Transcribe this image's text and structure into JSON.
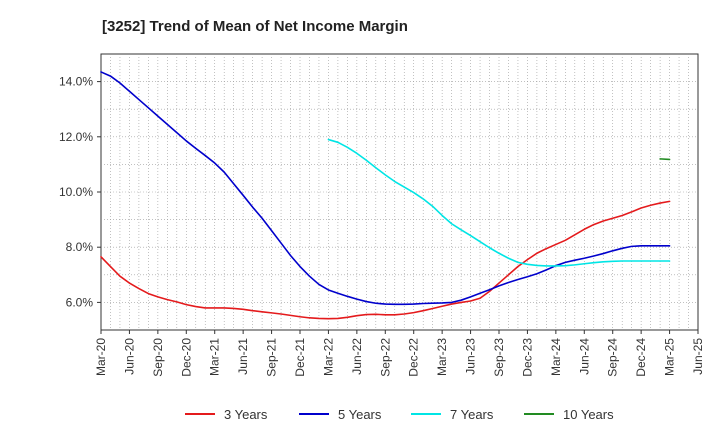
{
  "chart_data": {
    "type": "line",
    "title": "[3252]  Trend of Mean of Net Income Margin",
    "xlabel": "",
    "ylabel": "",
    "x_ticks": [
      "Mar-20",
      "Jun-20",
      "Sep-20",
      "Dec-20",
      "Mar-21",
      "Jun-21",
      "Sep-21",
      "Dec-21",
      "Mar-22",
      "Jun-22",
      "Sep-22",
      "Dec-22",
      "Mar-23",
      "Jun-23",
      "Sep-23",
      "Dec-23",
      "Mar-24",
      "Jun-24",
      "Sep-24",
      "Dec-24",
      "Mar-25",
      "Jun-25"
    ],
    "y_ticks": [
      6.0,
      8.0,
      10.0,
      12.0,
      14.0
    ],
    "y_tick_labels": [
      "6.0%",
      "8.0%",
      "10.0%",
      "12.0%",
      "14.0%"
    ],
    "ylim": [
      5.0,
      15.0
    ],
    "grid": true,
    "legend_position": "bottom",
    "series": [
      {
        "name": "3 Years",
        "color": "#e41a1c",
        "points": [
          [
            "Mar-20",
            7.65
          ],
          [
            "Apr-20",
            7.3
          ],
          [
            "May-20",
            6.95
          ],
          [
            "Jun-20",
            6.7
          ],
          [
            "Jul-20",
            6.5
          ],
          [
            "Aug-20",
            6.32
          ],
          [
            "Sep-20",
            6.2
          ],
          [
            "Oct-20",
            6.1
          ],
          [
            "Nov-20",
            6.02
          ],
          [
            "Dec-20",
            5.92
          ],
          [
            "Jan-21",
            5.85
          ],
          [
            "Feb-21",
            5.8
          ],
          [
            "Mar-21",
            5.8
          ],
          [
            "Apr-21",
            5.8
          ],
          [
            "May-21",
            5.78
          ],
          [
            "Jun-21",
            5.75
          ],
          [
            "Jul-21",
            5.7
          ],
          [
            "Aug-21",
            5.66
          ],
          [
            "Sep-21",
            5.62
          ],
          [
            "Oct-21",
            5.58
          ],
          [
            "Nov-21",
            5.53
          ],
          [
            "Dec-21",
            5.48
          ],
          [
            "Jan-22",
            5.44
          ],
          [
            "Feb-22",
            5.42
          ],
          [
            "Mar-22",
            5.41
          ],
          [
            "Apr-22",
            5.42
          ],
          [
            "May-22",
            5.46
          ],
          [
            "Jun-22",
            5.52
          ],
          [
            "Jul-22",
            5.56
          ],
          [
            "Aug-22",
            5.57
          ],
          [
            "Sep-22",
            5.55
          ],
          [
            "Oct-22",
            5.55
          ],
          [
            "Nov-22",
            5.58
          ],
          [
            "Dec-22",
            5.63
          ],
          [
            "Jan-23",
            5.7
          ],
          [
            "Feb-23",
            5.78
          ],
          [
            "Mar-23",
            5.86
          ],
          [
            "Apr-23",
            5.94
          ],
          [
            "May-23",
            6.0
          ],
          [
            "Jun-23",
            6.05
          ],
          [
            "Jul-23",
            6.15
          ],
          [
            "Aug-23",
            6.4
          ],
          [
            "Sep-23",
            6.7
          ],
          [
            "Oct-23",
            7.0
          ],
          [
            "Nov-23",
            7.3
          ],
          [
            "Dec-23",
            7.55
          ],
          [
            "Jan-24",
            7.78
          ],
          [
            "Feb-24",
            7.95
          ],
          [
            "Mar-24",
            8.1
          ],
          [
            "Apr-24",
            8.25
          ],
          [
            "May-24",
            8.45
          ],
          [
            "Jun-24",
            8.65
          ],
          [
            "Jul-24",
            8.82
          ],
          [
            "Aug-24",
            8.95
          ],
          [
            "Sep-24",
            9.05
          ],
          [
            "Oct-24",
            9.15
          ],
          [
            "Nov-24",
            9.28
          ],
          [
            "Dec-24",
            9.42
          ],
          [
            "Jan-25",
            9.52
          ],
          [
            "Feb-25",
            9.6
          ],
          [
            "Mar-25",
            9.66
          ]
        ]
      },
      {
        "name": "5 Years",
        "color": "#0000cc",
        "points": [
          [
            "Mar-20",
            14.35
          ],
          [
            "Apr-20",
            14.2
          ],
          [
            "May-20",
            13.95
          ],
          [
            "Jun-20",
            13.65
          ],
          [
            "Jul-20",
            13.35
          ],
          [
            "Aug-20",
            13.05
          ],
          [
            "Sep-20",
            12.75
          ],
          [
            "Oct-20",
            12.45
          ],
          [
            "Nov-20",
            12.15
          ],
          [
            "Dec-20",
            11.85
          ],
          [
            "Jan-21",
            11.58
          ],
          [
            "Feb-21",
            11.32
          ],
          [
            "Mar-21",
            11.05
          ],
          [
            "Apr-21",
            10.72
          ],
          [
            "May-21",
            10.3
          ],
          [
            "Jun-21",
            9.88
          ],
          [
            "Jul-21",
            9.45
          ],
          [
            "Aug-21",
            9.05
          ],
          [
            "Sep-21",
            8.6
          ],
          [
            "Oct-21",
            8.15
          ],
          [
            "Nov-21",
            7.7
          ],
          [
            "Dec-21",
            7.3
          ],
          [
            "Jan-22",
            6.95
          ],
          [
            "Feb-22",
            6.65
          ],
          [
            "Mar-22",
            6.45
          ],
          [
            "Apr-22",
            6.33
          ],
          [
            "May-22",
            6.22
          ],
          [
            "Jun-22",
            6.12
          ],
          [
            "Jul-22",
            6.03
          ],
          [
            "Aug-22",
            5.97
          ],
          [
            "Sep-22",
            5.94
          ],
          [
            "Oct-22",
            5.93
          ],
          [
            "Nov-22",
            5.93
          ],
          [
            "Dec-22",
            5.94
          ],
          [
            "Jan-23",
            5.96
          ],
          [
            "Feb-23",
            5.97
          ],
          [
            "Mar-23",
            5.98
          ],
          [
            "Apr-23",
            6.0
          ],
          [
            "May-23",
            6.08
          ],
          [
            "Jun-23",
            6.2
          ],
          [
            "Jul-23",
            6.33
          ],
          [
            "Aug-23",
            6.46
          ],
          [
            "Sep-23",
            6.6
          ],
          [
            "Oct-23",
            6.72
          ],
          [
            "Nov-23",
            6.83
          ],
          [
            "Dec-23",
            6.93
          ],
          [
            "Jan-24",
            7.04
          ],
          [
            "Feb-24",
            7.18
          ],
          [
            "Mar-24",
            7.33
          ],
          [
            "Apr-24",
            7.45
          ],
          [
            "May-24",
            7.53
          ],
          [
            "Jun-24",
            7.6
          ],
          [
            "Jul-24",
            7.68
          ],
          [
            "Aug-24",
            7.77
          ],
          [
            "Sep-24",
            7.87
          ],
          [
            "Oct-24",
            7.96
          ],
          [
            "Nov-24",
            8.03
          ],
          [
            "Dec-24",
            8.05
          ],
          [
            "Jan-25",
            8.05
          ],
          [
            "Feb-25",
            8.05
          ],
          [
            "Mar-25",
            8.05
          ]
        ]
      },
      {
        "name": "7 Years",
        "color": "#00e5e5",
        "points": [
          [
            "Mar-22",
            11.9
          ],
          [
            "Apr-22",
            11.8
          ],
          [
            "May-22",
            11.62
          ],
          [
            "Jun-22",
            11.4
          ],
          [
            "Jul-22",
            11.15
          ],
          [
            "Aug-22",
            10.88
          ],
          [
            "Sep-22",
            10.62
          ],
          [
            "Oct-22",
            10.38
          ],
          [
            "Nov-22",
            10.18
          ],
          [
            "Dec-22",
            9.98
          ],
          [
            "Jan-23",
            9.75
          ],
          [
            "Feb-23",
            9.48
          ],
          [
            "Mar-23",
            9.15
          ],
          [
            "Apr-23",
            8.85
          ],
          [
            "May-23",
            8.63
          ],
          [
            "Jun-23",
            8.42
          ],
          [
            "Jul-23",
            8.2
          ],
          [
            "Aug-23",
            7.98
          ],
          [
            "Sep-23",
            7.78
          ],
          [
            "Oct-23",
            7.6
          ],
          [
            "Nov-23",
            7.45
          ],
          [
            "Dec-23",
            7.38
          ],
          [
            "Jan-24",
            7.34
          ],
          [
            "Feb-24",
            7.32
          ],
          [
            "Mar-24",
            7.32
          ],
          [
            "Apr-24",
            7.33
          ],
          [
            "May-24",
            7.36
          ],
          [
            "Jun-24",
            7.4
          ],
          [
            "Jul-24",
            7.44
          ],
          [
            "Aug-24",
            7.47
          ],
          [
            "Sep-24",
            7.49
          ],
          [
            "Oct-24",
            7.5
          ],
          [
            "Nov-24",
            7.5
          ],
          [
            "Dec-24",
            7.5
          ],
          [
            "Jan-25",
            7.5
          ],
          [
            "Feb-25",
            7.5
          ],
          [
            "Mar-25",
            7.5
          ]
        ]
      },
      {
        "name": "10 Years",
        "color": "#228b22",
        "points": [
          [
            "Feb-25",
            11.2
          ],
          [
            "Mar-25",
            11.18
          ]
        ]
      }
    ]
  }
}
